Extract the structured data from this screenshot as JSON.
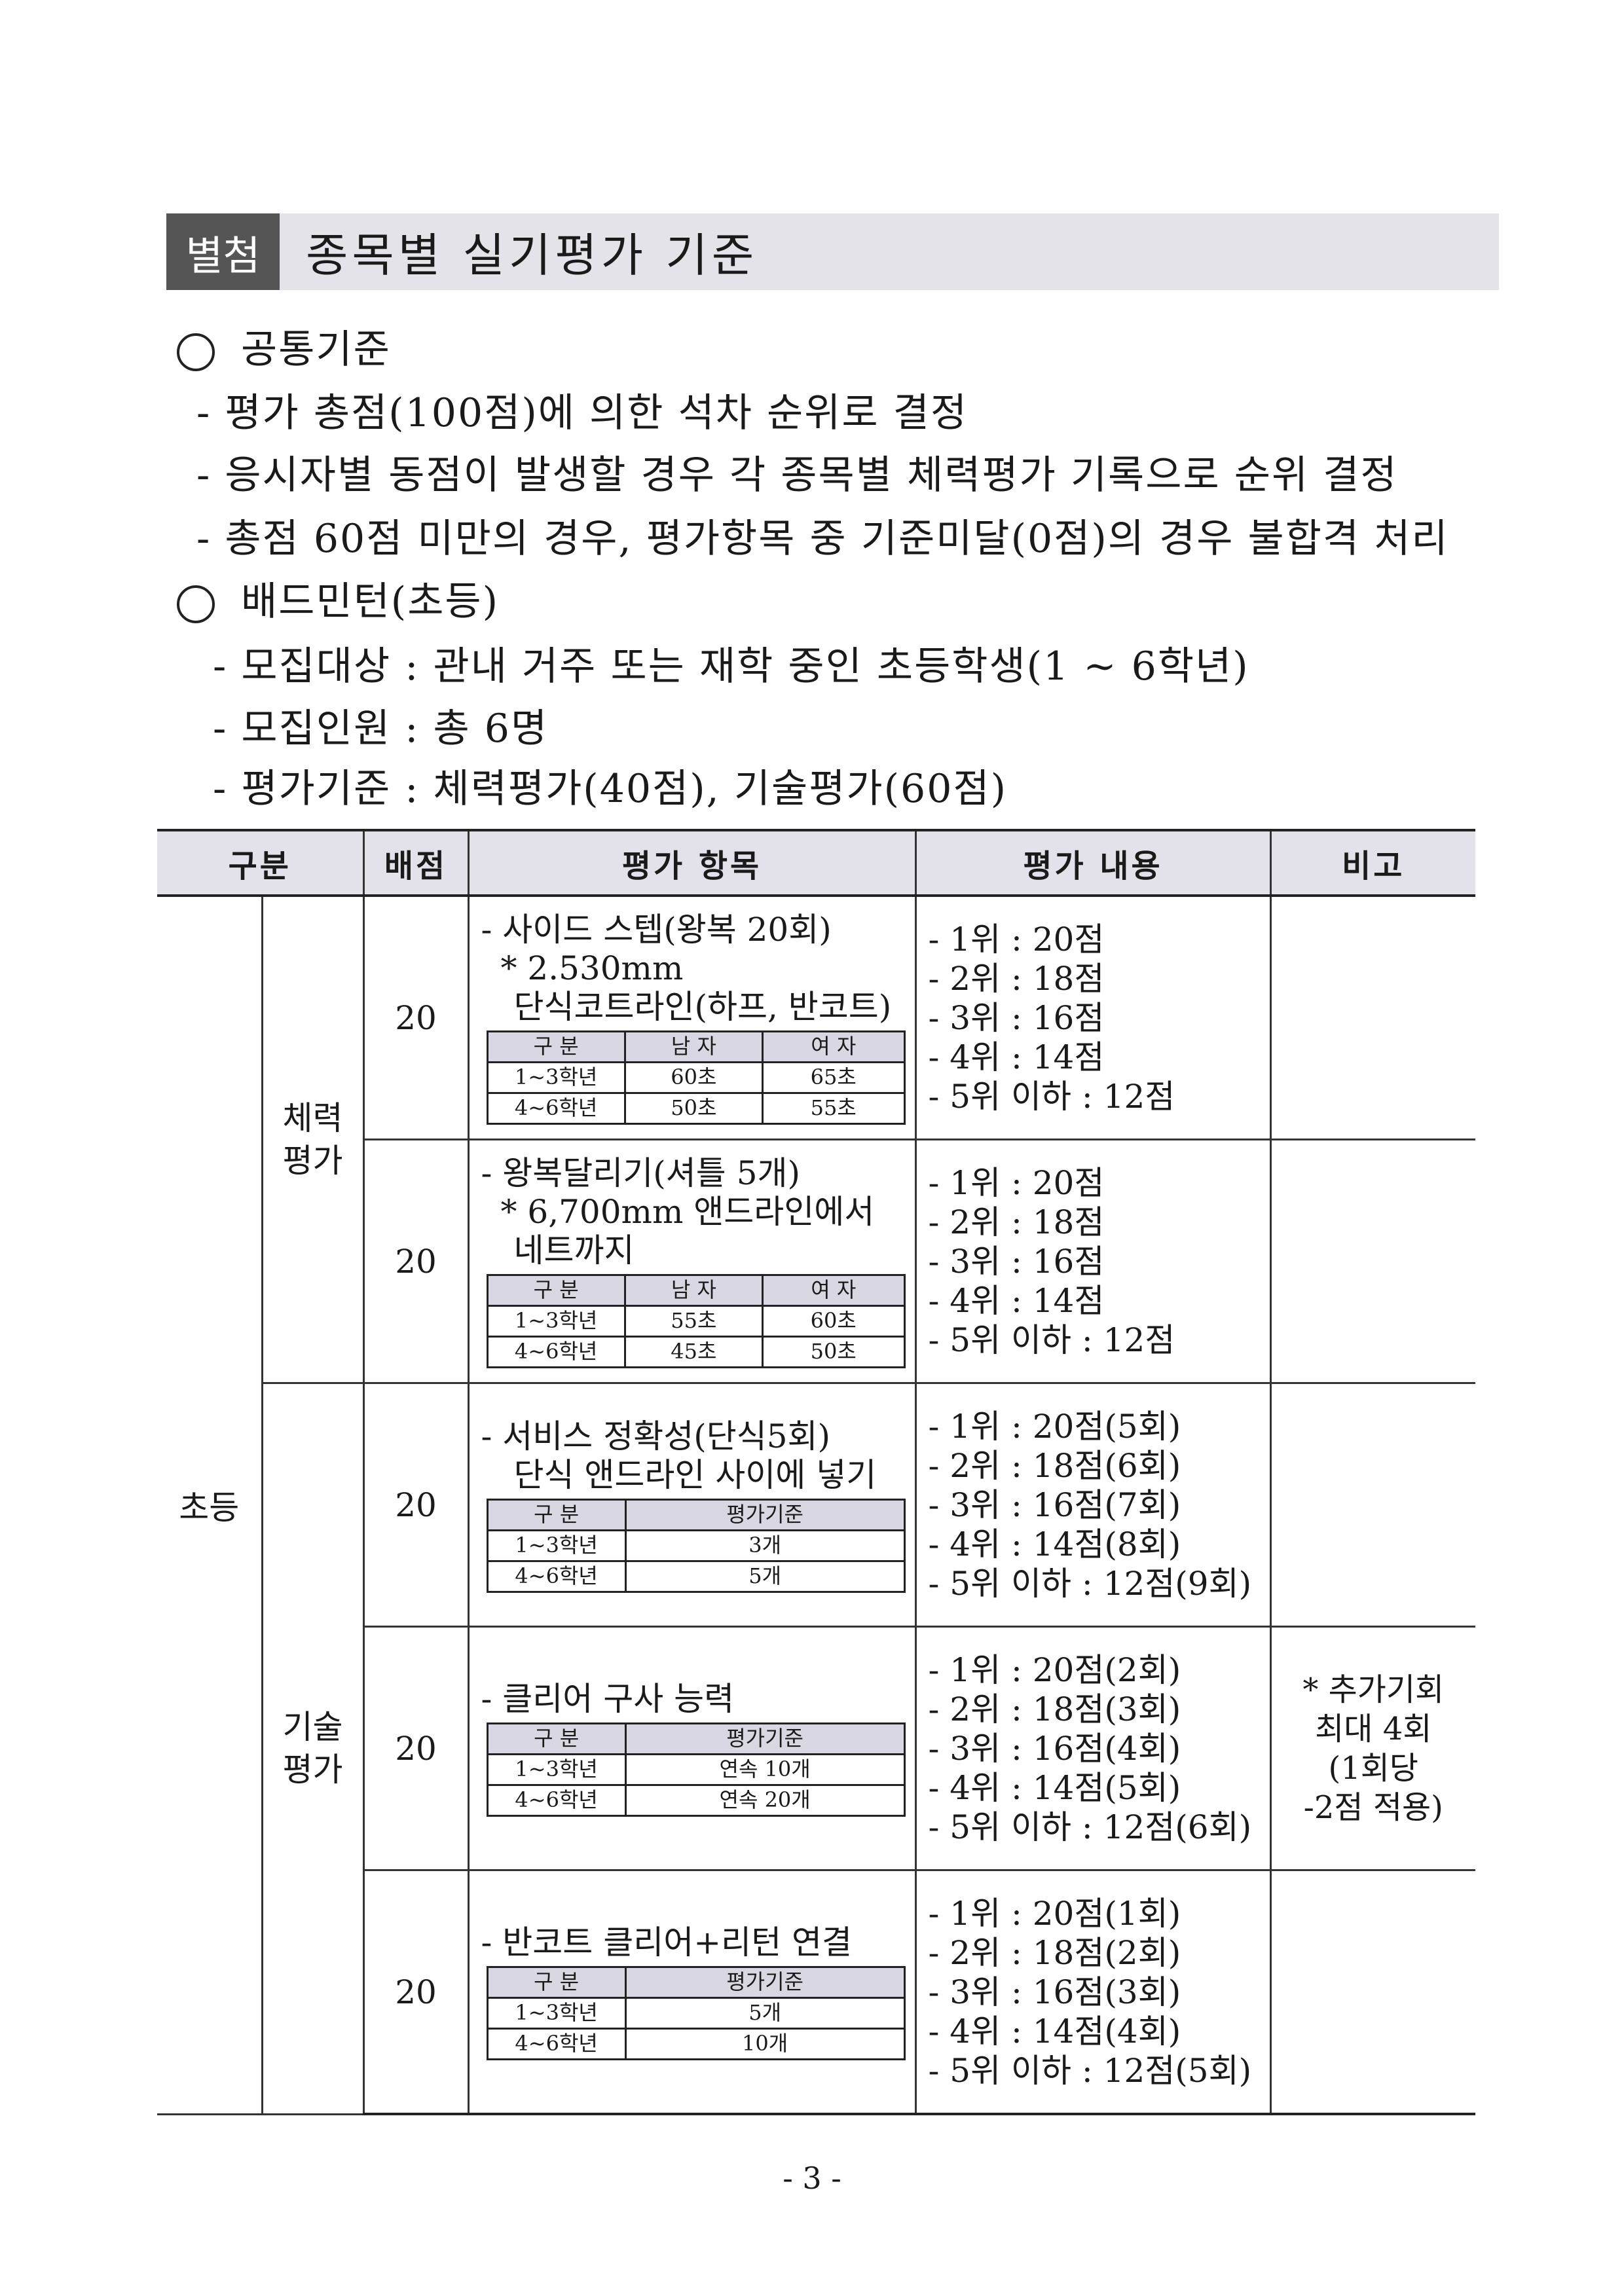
{
  "header": {
    "tag": "별첨",
    "title": "종목별 실기평가 기준"
  },
  "common": {
    "heading": "공통기준",
    "items": [
      "- 평가 총점(100점)에 의한 석차 순위로 결정",
      "- 응시자별 동점이 발생할 경우 각 종목별 체력평가 기록으로 순위 결정",
      "- 총점 60점 미만의 경우, 평가항목 중 기준미달(0점)의 경우 불합격 처리"
    ]
  },
  "badminton": {
    "heading": "배드민턴(초등)",
    "items": [
      "- 모집대상 : 관내 거주 또는 재학 중인 초등학생(1 ~ 6학년)",
      "- 모집인원 : 총 6명",
      "- 평가기준 : 체력평가(40점), 기술평가(60점)"
    ]
  },
  "table": {
    "headers": {
      "division": "구분",
      "score": "배점",
      "item": "평가 항목",
      "content": "평가 내용",
      "note": "비고"
    },
    "level": "초등",
    "groups": {
      "physical": "체력\n평가",
      "skill": "기술\n평가"
    },
    "rows": [
      {
        "score": "20",
        "item_lines": [
          "- 사이드 스텝(왕복 20회)",
          " * 2.530mm",
          "단식코트라인(하프, 반코트)"
        ],
        "sub_headers": [
          "구 분",
          "남 자",
          "여 자"
        ],
        "sub_rows": [
          [
            "1~3학년",
            "60초",
            "65초"
          ],
          [
            "4~6학년",
            "50초",
            "55초"
          ]
        ],
        "ranks": [
          "- 1위 : 20점",
          "- 2위 : 18점",
          "- 3위 : 16점",
          "- 4위 : 14점",
          "- 5위 이하 : 12점"
        ]
      },
      {
        "score": "20",
        "item_lines": [
          "- 왕복달리기(셔틀 5개)",
          " * 6,700mm 앤드라인에서",
          "네트까지"
        ],
        "sub_headers": [
          "구 분",
          "남 자",
          "여 자"
        ],
        "sub_rows": [
          [
            "1~3학년",
            "55초",
            "60초"
          ],
          [
            "4~6학년",
            "45초",
            "50초"
          ]
        ],
        "ranks": [
          "- 1위 : 20점",
          "- 2위 : 18점",
          "- 3위 : 16점",
          "- 4위 : 14점",
          "- 5위 이하 : 12점"
        ]
      },
      {
        "score": "20",
        "item_lines": [
          "- 서비스 정확성(단식5회)",
          "단식 앤드라인 사이에 넣기"
        ],
        "sub_headers": [
          "구 분",
          "평가기준"
        ],
        "sub_rows": [
          [
            "1~3학년",
            "3개"
          ],
          [
            "4~6학년",
            "5개"
          ]
        ],
        "ranks": [
          "- 1위 : 20점(5회)",
          "- 2위 : 18점(6회)",
          "- 3위 : 16점(7회)",
          "- 4위 : 14점(8회)",
          "- 5위 이하 : 12점(9회)"
        ]
      },
      {
        "score": "20",
        "item_lines": [
          "- 클리어 구사 능력"
        ],
        "sub_headers": [
          "구 분",
          "평가기준"
        ],
        "sub_rows": [
          [
            "1~3학년",
            "연속 10개"
          ],
          [
            "4~6학년",
            "연속 20개"
          ]
        ],
        "ranks": [
          "- 1위 : 20점(2회)",
          "- 2위 : 18점(3회)",
          "- 3위 : 16점(4회)",
          "- 4위 : 14점(5회)",
          "- 5위 이하 : 12점(6회)"
        ],
        "note": "* 추가기회\n최대 4회\n(1회당\n-2점 적용)"
      },
      {
        "score": "20",
        "item_lines": [
          "- 반코트 클리어+리턴 연결"
        ],
        "sub_headers": [
          "구 분",
          "평가기준"
        ],
        "sub_rows": [
          [
            "1~3학년",
            "5개"
          ],
          [
            "4~6학년",
            "10개"
          ]
        ],
        "ranks": [
          "- 1위 : 20점(1회)",
          "- 2위 : 18점(2회)",
          "- 3위 : 16점(3회)",
          "- 4위 : 14점(4회)",
          "- 5위 이하 : 12점(5회)"
        ]
      }
    ]
  },
  "page_number": "- 3 -"
}
